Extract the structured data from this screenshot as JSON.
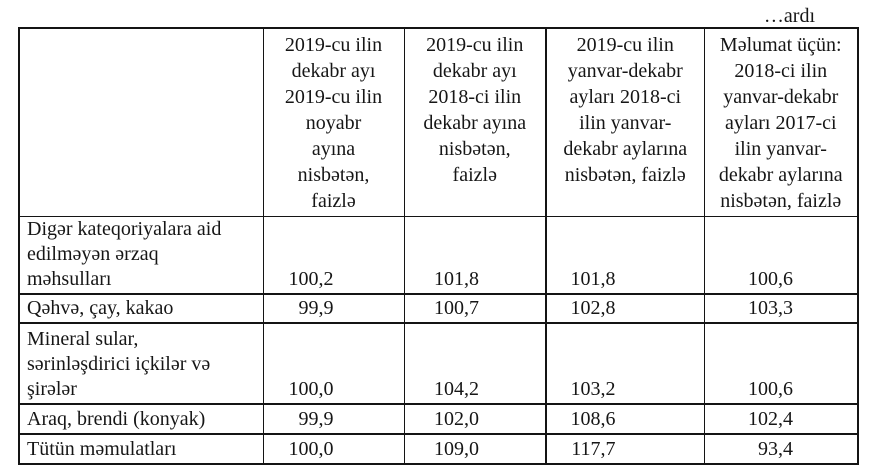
{
  "page": {
    "continuation_note": "…ardı"
  },
  "table": {
    "header": {
      "category_label": "",
      "columns": [
        {
          "label": "2019-cu ilin dekabr ayı 2019-cu ilin noyabr ayına nisbətən, faizlə",
          "lines": [
            "2019-cu ilin",
            "dekabr ayı",
            "2019-cu ilin",
            "noyabr",
            "ayına",
            "nisbətən,",
            "faizlə"
          ]
        },
        {
          "label": "2019-cu ilin dekabr ayı 2018-ci ilin dekabr ayına nisbətən, faizlə",
          "lines": [
            "2019-cu ilin",
            "dekabr ayı",
            "2018-ci ilin",
            "dekabr ayına",
            "nisbətən,",
            "faizlə"
          ]
        },
        {
          "label": "2019-cu ilin yanvar-dekabr ayları 2018-ci ilin yanvar-dekabr aylarına nisbətən, faizlə",
          "lines": [
            "2019-cu ilin",
            "yanvar-dekabr",
            "ayları 2018-ci",
            "ilin yanvar-",
            "dekabr aylarına",
            "nisbətən, faizlə"
          ]
        },
        {
          "label": "Məlumat üçün: 2018-ci ilin yanvar-dekabr ayları 2017-ci ilin yanvar-dekabr aylarına nisbətən, faizlə",
          "lines": [
            "Məlumat üçün:",
            "2018-ci ilin",
            "yanvar-dekabr",
            "ayları 2017-ci",
            "ilin yanvar-",
            "dekabr aylarına",
            "nisbətən, faizlə"
          ]
        }
      ]
    },
    "rows": [
      {
        "category": "Digər kateqoriyalara aid edilməyən ərzaq məhsulları",
        "category_lines": [
          "Digər kateqoriyalara aid",
          "edilməyən ərzaq",
          "məhsulları"
        ],
        "values": [
          "100,2",
          "101,8",
          "101,8",
          "100,6"
        ]
      },
      {
        "category": "Qəhvə, çay, kakao",
        "category_lines": [
          "Qəhvə, çay, kakao"
        ],
        "values": [
          "99,9",
          "100,7",
          "102,8",
          "103,3"
        ]
      },
      {
        "category": "Mineral sular, sərinləşdirici içkilər və şirələr",
        "category_lines": [
          "Mineral sular,",
          "sərinləşdirici içkilər və",
          "şirələr"
        ],
        "values": [
          "100,0",
          "104,2",
          "103,2",
          "100,6"
        ]
      },
      {
        "category": "Araq, brendi (konyak)",
        "category_lines": [
          "Araq, brendi (konyak)"
        ],
        "values": [
          "99,9",
          "102,0",
          "108,6",
          "102,4"
        ]
      },
      {
        "category": "Tütün məmulatları",
        "category_lines": [
          "Tütün məmulatları"
        ],
        "values": [
          "100,0",
          "109,0",
          "117,7",
          "93,4"
        ]
      }
    ]
  }
}
